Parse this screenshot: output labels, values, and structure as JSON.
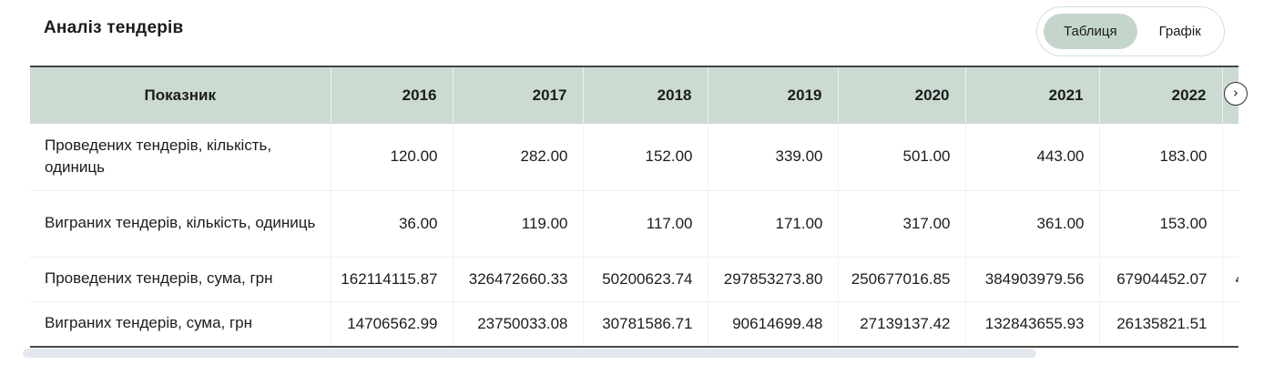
{
  "header": {
    "title": "Аналіз тендерів",
    "view_toggle": {
      "options": [
        {
          "label": "Таблиця",
          "active": true
        },
        {
          "label": "Графік",
          "active": false
        }
      ]
    }
  },
  "table": {
    "columns": [
      "Показник",
      "2016",
      "2017",
      "2018",
      "2019",
      "2020",
      "2021",
      "2022"
    ],
    "rows": [
      {
        "label": "Проведених тендерів, кількість, одиниць",
        "values": [
          "120.00",
          "282.00",
          "152.00",
          "339.00",
          "501.00",
          "443.00",
          "183.00"
        ]
      },
      {
        "label": "Виграних тендерів, кількість, одиниць",
        "values": [
          "36.00",
          "119.00",
          "117.00",
          "171.00",
          "317.00",
          "361.00",
          "153.00"
        ]
      },
      {
        "label": "Проведених тендерів, сума, грн",
        "values": [
          "162114115.87",
          "326472660.33",
          "50200623.74",
          "297853273.80",
          "250677016.85",
          "384903979.56",
          "67904452.07"
        ]
      },
      {
        "label": "Виграних тендерів, сума, грн",
        "values": [
          "14706562.99",
          "23750033.08",
          "30781586.71",
          "90614699.48",
          "27139137.42",
          "132843655.93",
          "26135821.51"
        ]
      }
    ],
    "clipped_column": {
      "header": "",
      "rows": [
        "",
        "",
        "4",
        ""
      ]
    },
    "scroll_next_icon": "chevron-right"
  },
  "colors": {
    "header_bg": "#cbdbd2",
    "toggle_active_bg": "#c4d6cc",
    "toggle_border": "#cfe2d8",
    "table_border_dark": "#464646",
    "scrollbar_thumb": "#e2e8ee",
    "text": "#1a1a1a"
  }
}
